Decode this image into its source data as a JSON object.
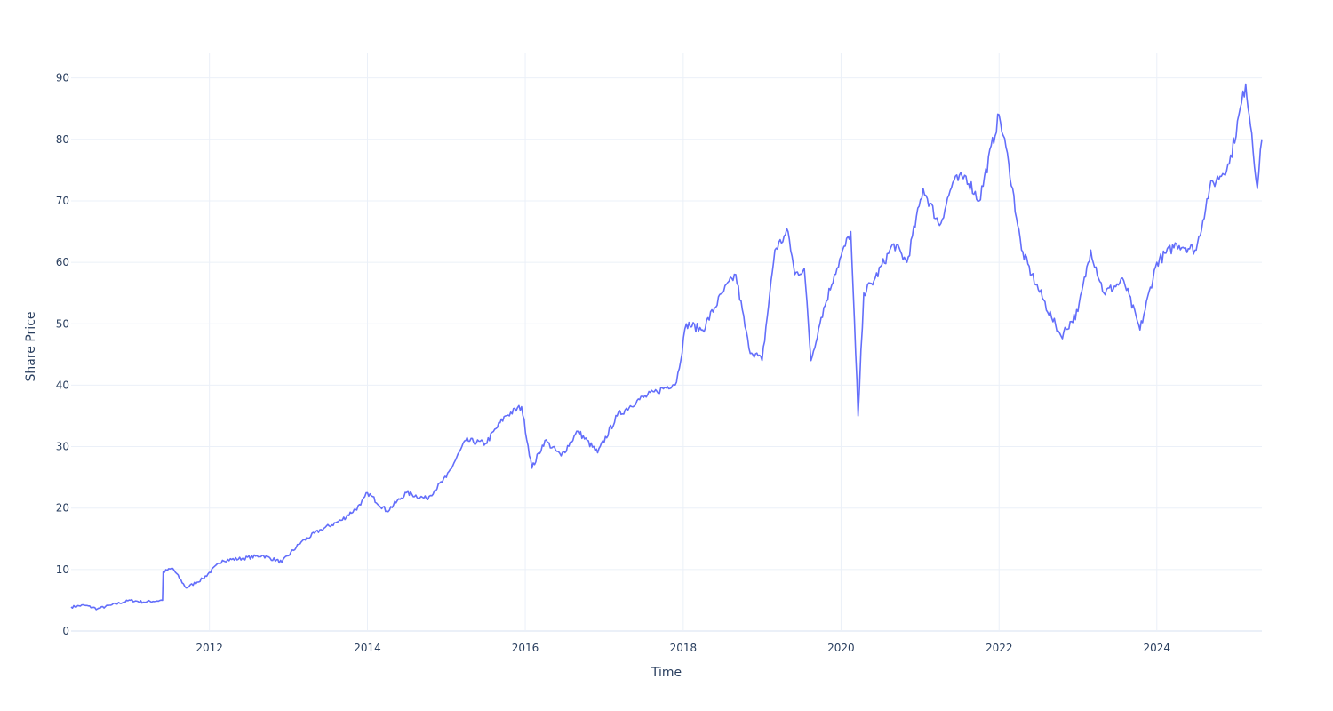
{
  "chart_data": {
    "type": "line",
    "title": "",
    "xlabel": "Time",
    "ylabel": "Share Price",
    "xlim": [
      "2010-04-01",
      "2025-05-01"
    ],
    "ylim": [
      0,
      94
    ],
    "grid": true,
    "line_color": "#636efa",
    "x_ticks": [
      {
        "date": "2012-01-01",
        "label": "2012"
      },
      {
        "date": "2014-01-01",
        "label": "2014"
      },
      {
        "date": "2016-01-01",
        "label": "2016"
      },
      {
        "date": "2018-01-01",
        "label": "2018"
      },
      {
        "date": "2020-01-01",
        "label": "2020"
      },
      {
        "date": "2022-01-01",
        "label": "2022"
      },
      {
        "date": "2024-01-01",
        "label": "2024"
      }
    ],
    "y_ticks": [
      {
        "value": 0,
        "label": "0"
      },
      {
        "value": 10,
        "label": "10"
      },
      {
        "value": 20,
        "label": "20"
      },
      {
        "value": 30,
        "label": "30"
      },
      {
        "value": 40,
        "label": "40"
      },
      {
        "value": 50,
        "label": "50"
      },
      {
        "value": 60,
        "label": "60"
      },
      {
        "value": 70,
        "label": "70"
      },
      {
        "value": 80,
        "label": "80"
      },
      {
        "value": 90,
        "label": "90"
      }
    ],
    "series": [
      {
        "x": [
          "2010-04-01",
          "2010-06-01",
          "2010-08-01",
          "2010-10-01",
          "2011-01-01",
          "2011-03-01",
          "2011-05-29",
          "2011-06-01",
          "2011-07-15",
          "2011-09-15",
          "2011-12-01",
          "2012-03-01",
          "2012-06-01",
          "2012-09-01",
          "2012-12-01",
          "2013-03-01",
          "2013-06-01",
          "2013-09-01",
          "2013-12-01",
          "2014-01-01",
          "2014-04-01",
          "2014-07-01",
          "2014-10-01",
          "2015-01-01",
          "2015-04-01",
          "2015-07-01",
          "2015-10-01",
          "2015-12-15",
          "2016-02-01",
          "2016-04-01",
          "2016-06-15",
          "2016-09-01",
          "2016-12-01",
          "2017-03-01",
          "2017-06-01",
          "2017-09-01",
          "2017-12-01",
          "2018-01-15",
          "2018-04-01",
          "2018-07-01",
          "2018-09-01",
          "2018-11-01",
          "2019-01-01",
          "2019-03-01",
          "2019-05-01",
          "2019-06-01",
          "2019-07-15",
          "2019-08-15",
          "2019-10-01",
          "2019-12-01",
          "2020-02-15",
          "2020-03-20",
          "2020-04-15",
          "2020-06-01",
          "2020-09-01",
          "2020-11-01",
          "2021-01-15",
          "2021-04-01",
          "2021-06-01",
          "2021-08-01",
          "2021-10-01",
          "2022-01-01",
          "2022-02-15",
          "2022-04-15",
          "2022-06-01",
          "2022-09-01",
          "2022-10-15",
          "2023-01-01",
          "2023-03-01",
          "2023-05-01",
          "2023-08-01",
          "2023-10-15",
          "2024-01-01",
          "2024-04-01",
          "2024-07-01",
          "2024-09-01",
          "2024-12-01",
          "2025-02-15",
          "2025-03-15",
          "2025-04-10",
          "2025-05-01"
        ],
        "y": [
          3.9,
          4.2,
          3.6,
          4.2,
          5.0,
          4.7,
          5.0,
          9.6,
          10.2,
          7.0,
          8.5,
          11.5,
          11.8,
          12.3,
          11.2,
          14.5,
          16.5,
          18.0,
          20.5,
          22.5,
          19.5,
          22.5,
          21.5,
          25.0,
          31.0,
          30.5,
          35.0,
          36.5,
          26.5,
          31.0,
          28.5,
          32.5,
          29.0,
          35.0,
          37.5,
          39.0,
          40.5,
          50.0,
          49.0,
          55.0,
          58.0,
          46.0,
          44.0,
          62.0,
          65.0,
          58.0,
          59.0,
          44.0,
          51.0,
          58.0,
          65.0,
          35.0,
          55.0,
          57.0,
          63.0,
          60.0,
          72.0,
          66.0,
          73.0,
          74.0,
          70.0,
          84.0,
          76.0,
          62.0,
          58.0,
          51.0,
          48.0,
          52.0,
          62.0,
          55.0,
          57.0,
          49.0,
          60.0,
          63.0,
          62.0,
          72.0,
          76.0,
          89.0,
          81.0,
          72.0,
          80.0
        ]
      }
    ]
  }
}
